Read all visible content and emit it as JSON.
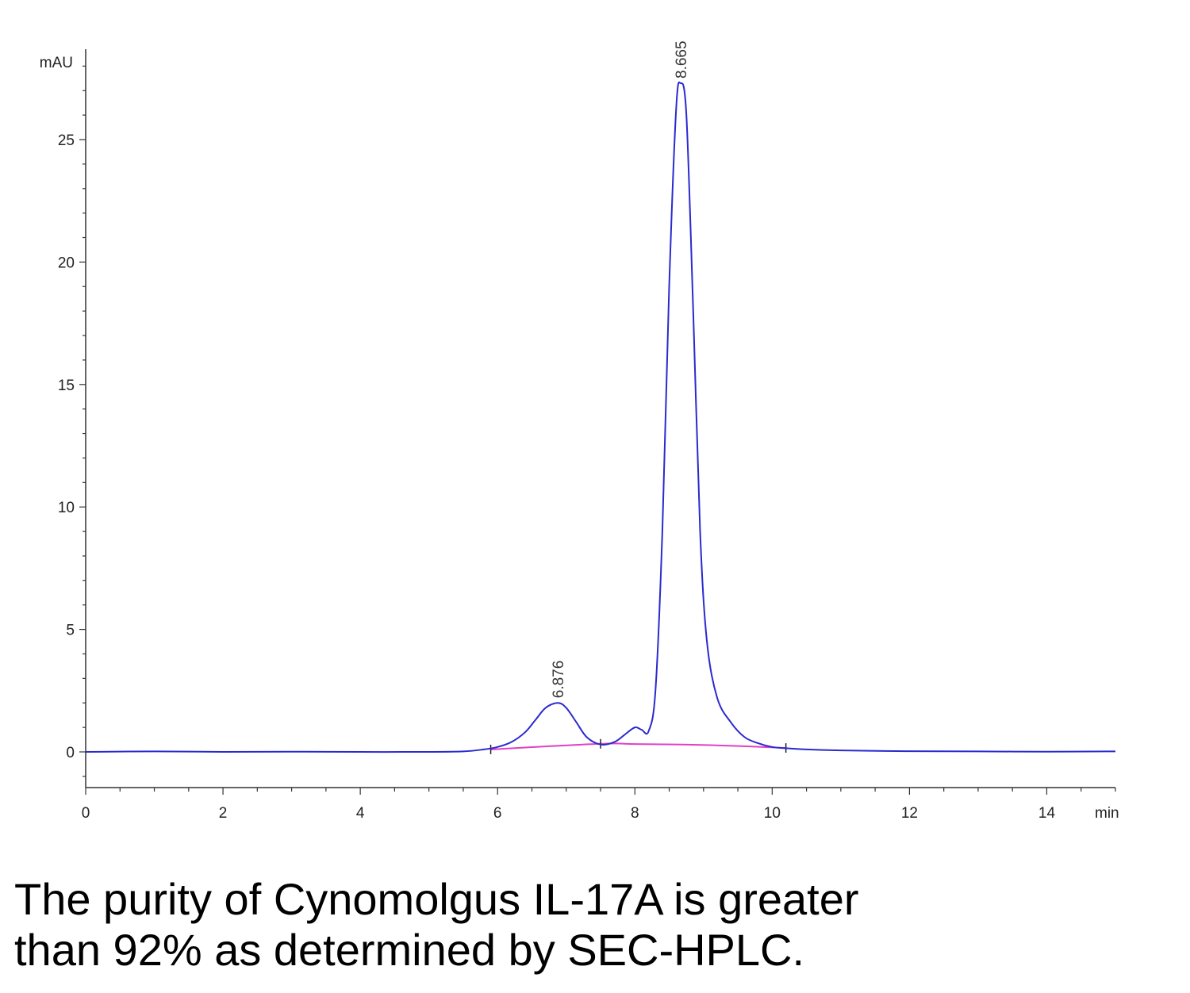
{
  "chart_data": {
    "type": "line",
    "title": "",
    "xlabel": "min",
    "ylabel": "mAU",
    "xlim": [
      0,
      15
    ],
    "ylim": [
      -1.5,
      28
    ],
    "x_ticks": [
      0,
      2,
      4,
      6,
      8,
      10,
      12,
      14
    ],
    "y_ticks": [
      0,
      5,
      10,
      15,
      20,
      25
    ],
    "grid": false,
    "colors": {
      "signal": "#2a2ad0",
      "baseline": "#e040c8",
      "axis": "#333333"
    },
    "series": [
      {
        "x": [
          0,
          1,
          2,
          3,
          4,
          5,
          5.5,
          5.8,
          6.0,
          6.2,
          6.4,
          6.55,
          6.7,
          6.876,
          7.0,
          7.15,
          7.3,
          7.5,
          7.7,
          7.85,
          8.0,
          8.1,
          8.2,
          8.3,
          8.4,
          8.5,
          8.6,
          8.665,
          8.75,
          8.85,
          8.95,
          9.05,
          9.2,
          9.4,
          9.6,
          9.8,
          10.0,
          10.2,
          10.5,
          11,
          12,
          13,
          14,
          15
        ],
        "y": [
          0,
          0.02,
          0,
          0.01,
          0,
          0,
          0.02,
          0.1,
          0.2,
          0.4,
          0.8,
          1.3,
          1.8,
          2.0,
          1.8,
          1.2,
          0.6,
          0.3,
          0.4,
          0.7,
          1.0,
          0.9,
          0.85,
          2.5,
          9,
          19,
          26.2,
          27.3,
          26,
          18,
          9,
          4.5,
          2.2,
          1.2,
          0.6,
          0.35,
          0.2,
          0.15,
          0.1,
          0.06,
          0.03,
          0.02,
          0.01,
          0.02
        ]
      }
    ],
    "baseline": {
      "x": [
        5.9,
        7.5,
        8.0,
        8.7,
        9.5,
        10.2
      ],
      "y": [
        0.1,
        0.33,
        0.32,
        0.3,
        0.24,
        0.16
      ],
      "markers_x": [
        5.9,
        7.5,
        10.2
      ]
    },
    "peaks": [
      {
        "x": 6.876,
        "y": 2.0,
        "label": "6.876"
      },
      {
        "x": 8.665,
        "y": 27.3,
        "label": "8.665"
      }
    ]
  },
  "caption": {
    "line1": "The purity of Cynomolgus IL-17A is greater",
    "line2": "than 92% as determined by SEC-HPLC."
  }
}
